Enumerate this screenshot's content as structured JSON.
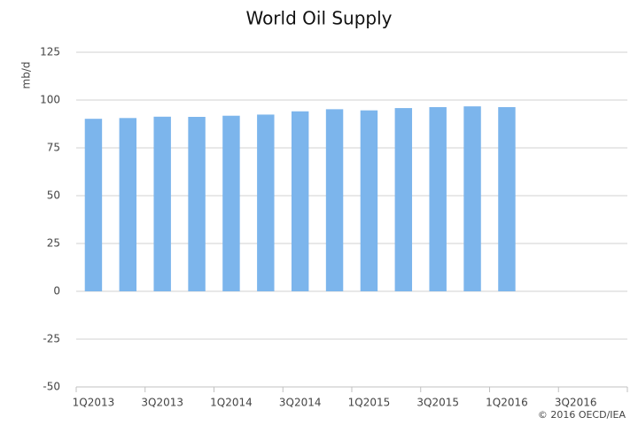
{
  "chart_data": {
    "type": "bar",
    "title": "World Oil Supply",
    "y_label": "mb/d",
    "source": "© 2016 OECD/IEA",
    "categories": [
      "1Q2013",
      null,
      "3Q2013",
      null,
      "1Q2014",
      null,
      "3Q2014",
      null,
      "1Q2015",
      null,
      "3Q2015",
      null,
      "1Q2016",
      null,
      "3Q2016",
      null
    ],
    "values": [
      90.2,
      90.6,
      91.3,
      91.2,
      91.8,
      92.4,
      94.1,
      95.2,
      94.6,
      95.8,
      96.3,
      96.7,
      96.3,
      null,
      null,
      null
    ],
    "color": "#7cb5ec",
    "ylim": [
      -50,
      125
    ],
    "yticks": [
      -50,
      -25,
      0,
      25,
      50,
      75,
      100,
      125
    ],
    "grid": true
  }
}
